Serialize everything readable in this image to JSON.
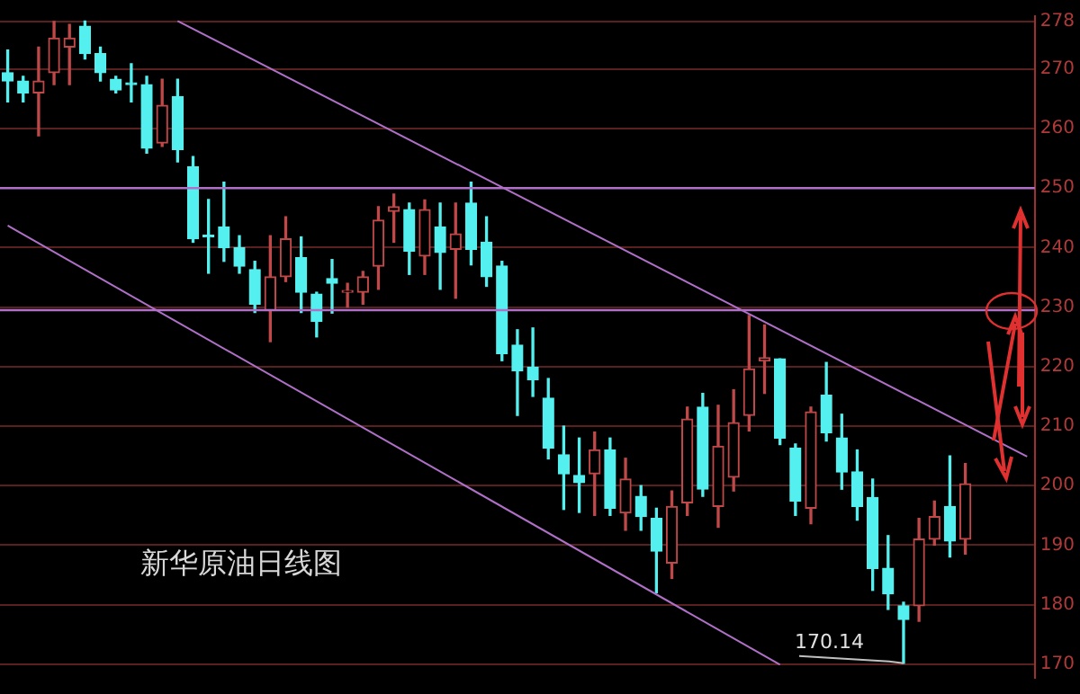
{
  "chart_data": {
    "type": "candlestick",
    "title": "新华原油日线图",
    "categories": [
      null,
      null,
      null,
      null,
      null,
      null,
      null,
      null,
      null,
      null,
      null,
      null,
      null,
      null,
      null,
      null,
      null,
      null,
      null,
      null,
      null,
      null,
      null,
      null,
      null,
      null,
      null,
      null,
      null,
      null,
      null,
      null,
      null,
      null,
      null,
      null,
      null,
      null,
      null,
      null,
      null,
      null,
      null,
      null,
      null,
      null,
      null,
      null,
      null,
      null,
      null,
      null,
      null,
      null,
      null,
      null,
      null,
      null,
      null,
      null,
      null,
      null,
      null,
      null,
      null,
      null,
      null
    ],
    "ohlc": [
      [
        269.4,
        273.2,
        264.5,
        268.0
      ],
      [
        268.0,
        268.8,
        264.5,
        266.0
      ],
      [
        266.0,
        273.7,
        258.8,
        268.0
      ],
      [
        269.4,
        278.0,
        267.4,
        275.2
      ],
      [
        273.7,
        277.5,
        267.4,
        275.2
      ],
      [
        277.2,
        278.1,
        271.7,
        272.6
      ],
      [
        272.6,
        273.7,
        268.0,
        269.4
      ],
      [
        268.3,
        268.8,
        266.0,
        266.5
      ],
      [
        267.7,
        270.9,
        264.5,
        267.4
      ],
      [
        267.4,
        268.8,
        255.9,
        256.7
      ],
      [
        257.6,
        268.3,
        257.0,
        263.9
      ],
      [
        265.4,
        268.3,
        254.4,
        256.5
      ],
      [
        253.6,
        255.3,
        240.9,
        241.5
      ],
      [
        242.0,
        248.1,
        235.7,
        241.8
      ],
      [
        243.5,
        251.0,
        237.7,
        240.0
      ],
      [
        240.0,
        242.0,
        235.7,
        236.9
      ],
      [
        236.3,
        237.7,
        229.1,
        230.5
      ],
      [
        229.4,
        242.0,
        224.2,
        235.1
      ],
      [
        235.1,
        245.2,
        234.3,
        241.5
      ],
      [
        238.3,
        241.8,
        229.1,
        232.5
      ],
      [
        232.2,
        232.5,
        225.0,
        227.6
      ],
      [
        234.8,
        238.0,
        229.0,
        234.0
      ],
      [
        232.5,
        234.0,
        230.0,
        232.6
      ],
      [
        232.5,
        236.0,
        230.5,
        235.1
      ],
      [
        236.9,
        246.9,
        233.0,
        244.6
      ],
      [
        246.1,
        249.0,
        240.9,
        246.9
      ],
      [
        246.4,
        247.5,
        235.5,
        239.4
      ],
      [
        238.6,
        248.0,
        235.5,
        246.4
      ],
      [
        243.5,
        247.5,
        233.0,
        239.2
      ],
      [
        239.7,
        247.5,
        231.5,
        242.3
      ],
      [
        247.5,
        251.0,
        237.1,
        239.7
      ],
      [
        240.9,
        245.2,
        233.5,
        235.1
      ],
      [
        236.9,
        237.7,
        221.0,
        222.2
      ],
      [
        223.6,
        226.2,
        211.8,
        219.3
      ],
      [
        219.9,
        226.5,
        215.0,
        217.8
      ],
      [
        214.7,
        218.0,
        204.5,
        206.3
      ],
      [
        205.2,
        210.0,
        196.0,
        202.0
      ],
      [
        201.7,
        208.0,
        195.5,
        200.5
      ],
      [
        202.0,
        209.0,
        195.0,
        206.0
      ],
      [
        206.0,
        208.0,
        195.0,
        196.2
      ],
      [
        195.4,
        204.6,
        192.5,
        201.1
      ],
      [
        198.2,
        200.0,
        192.5,
        194.8
      ],
      [
        194.5,
        196.2,
        182.0,
        189.0
      ],
      [
        187.0,
        199.1,
        184.4,
        196.5
      ],
      [
        197.1,
        213.2,
        195.0,
        211.2
      ],
      [
        213.2,
        215.5,
        198.2,
        199.4
      ],
      [
        196.5,
        213.5,
        193.0,
        206.6
      ],
      [
        201.4,
        216.1,
        199.1,
        210.6
      ],
      [
        211.8,
        228.6,
        209.2,
        219.6
      ],
      [
        221.0,
        227.0,
        215.5,
        221.5
      ],
      [
        221.3,
        221.3,
        206.9,
        208.0
      ],
      [
        206.3,
        207.0,
        195.0,
        197.4
      ],
      [
        196.2,
        213.2,
        193.6,
        212.4
      ],
      [
        215.2,
        220.7,
        207.5,
        208.9
      ],
      [
        208.0,
        212.0,
        199.4,
        202.3
      ],
      [
        202.3,
        206.0,
        194.2,
        196.5
      ],
      [
        198.0,
        201.1,
        182.4,
        186.1
      ],
      [
        186.1,
        191.6,
        179.2,
        181.8
      ],
      [
        179.8,
        180.4,
        170.14,
        177.5
      ],
      [
        179.8,
        194.5,
        177.2,
        191.0
      ],
      [
        191.0,
        197.4,
        190.0,
        194.8
      ],
      [
        196.5,
        205.0,
        188.0,
        190.7
      ],
      [
        191.0,
        203.7,
        188.5,
        200.3
      ],
      null,
      null,
      null,
      null
    ],
    "colors": [
      "#54f0f0",
      "#54f0f0",
      "#c04848",
      "#c04848",
      "#c04848",
      "#54f0f0",
      "#54f0f0",
      "#54f0f0",
      "#54f0f0",
      "#54f0f0",
      "#c04848",
      "#54f0f0",
      "#54f0f0",
      "#54f0f0",
      "#54f0f0",
      "#54f0f0",
      "#54f0f0",
      "#c04848",
      "#c04848",
      "#54f0f0",
      "#54f0f0",
      "#54f0f0",
      "#c04848",
      "#c04848",
      "#c04848",
      "#c04848",
      "#54f0f0",
      "#c04848",
      "#54f0f0",
      "#c04848",
      "#54f0f0",
      "#54f0f0",
      "#54f0f0",
      "#54f0f0",
      "#54f0f0",
      "#54f0f0",
      "#54f0f0",
      "#54f0f0",
      "#c04848",
      "#54f0f0",
      "#c04848",
      "#54f0f0",
      "#54f0f0",
      "#c04848",
      "#c04848",
      "#54f0f0",
      "#c04848",
      "#c04848",
      "#c04848",
      "#c04848",
      "#54f0f0",
      "#54f0f0",
      "#c04848",
      "#54f0f0",
      "#54f0f0",
      "#54f0f0",
      "#54f0f0",
      "#54f0f0",
      "#54f0f0",
      "#c04848",
      "#c04848",
      "#54f0f0",
      "#c04848",
      null,
      null,
      null,
      null
    ],
    "series": [
      {
        "type": "line",
        "color": "#b070c8",
        "values": [
          null,
          null,
          null,
          null,
          null,
          null,
          null,
          null,
          null,
          null,
          null,
          278.1,
          null,
          null,
          null,
          null,
          null,
          null,
          null,
          null,
          null,
          null,
          null,
          null,
          null,
          null,
          null,
          null,
          null,
          null,
          null,
          null,
          null,
          null,
          null,
          null,
          null,
          null,
          null,
          null,
          null,
          null,
          null,
          null,
          null,
          null,
          null,
          null,
          null,
          null,
          null,
          null,
          null,
          null,
          null,
          null,
          null,
          null,
          null,
          null,
          null,
          null,
          null,
          null,
          null,
          null,
          204.9
        ]
      },
      {
        "type": "line",
        "color": "#b070c8",
        "values": [
          243.7,
          null,
          null,
          null,
          null,
          null,
          null,
          null,
          null,
          null,
          null,
          null,
          null,
          null,
          null,
          null,
          null,
          null,
          null,
          null,
          null,
          null,
          null,
          null,
          null,
          null,
          null,
          null,
          null,
          null,
          null,
          null,
          null,
          null,
          null,
          null,
          null,
          null,
          null,
          null,
          null,
          null,
          null,
          null,
          null,
          null,
          null,
          null,
          null,
          null,
          169.9,
          null,
          null,
          null,
          null,
          null,
          null,
          null,
          null,
          null,
          null,
          null,
          null,
          null,
          null,
          null,
          null
        ]
      }
    ],
    "ref_lines": [
      {
        "axis": "y",
        "value": 250,
        "color": "#b070c8"
      },
      {
        "axis": "y",
        "value": 229.5,
        "color": "#b070c8"
      }
    ],
    "annotations": [
      "170.14"
    ],
    "ylim": [
      167.7,
      278.9
    ],
    "yticks": [
      170,
      180,
      190,
      200,
      210,
      220,
      230,
      240,
      250,
      260,
      270,
      278
    ],
    "grid": "y",
    "tick_labels": "y"
  }
}
